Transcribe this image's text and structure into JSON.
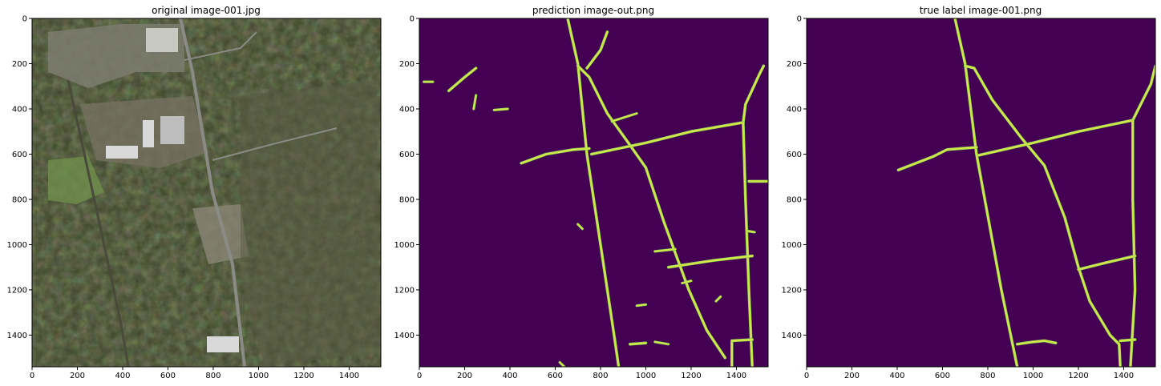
{
  "colors": {
    "background_mask": "#440154",
    "road_mask": "#d6e54a",
    "road_edge": "#7ad151",
    "aerial_forest": "#3b4127",
    "aerial_field": "#6a6a4a",
    "aerial_road": "#8b8b85",
    "aerial_roof": "#d9d9d9",
    "aerial_grass": "#6f8e4c"
  },
  "chart_data": [
    {
      "type": "image",
      "title": "original image-001.jpg",
      "xlim": [
        0,
        1540
      ],
      "ylim": [
        1540,
        0
      ],
      "xticks": [
        0,
        200,
        400,
        600,
        800,
        1000,
        1200,
        1400
      ],
      "yticks": [
        0,
        200,
        400,
        600,
        800,
        1000,
        1200,
        1400
      ],
      "content": "aerial photograph"
    },
    {
      "type": "image",
      "title": "prediction image-out.png",
      "xlim": [
        0,
        1540
      ],
      "ylim": [
        1540,
        0
      ],
      "xticks": [
        0,
        200,
        400,
        600,
        800,
        1000,
        1200,
        1400
      ],
      "yticks": [
        0,
        200,
        400,
        600,
        800,
        1000,
        1200,
        1400
      ],
      "roads": [
        [
          [
            655,
            0
          ],
          [
            700,
            200
          ],
          [
            740,
            600
          ],
          [
            800,
            1000
          ],
          [
            860,
            1400
          ],
          [
            880,
            1540
          ]
        ],
        [
          [
            700,
            210
          ],
          [
            750,
            260
          ],
          [
            830,
            420
          ],
          [
            930,
            560
          ],
          [
            1000,
            660
          ],
          [
            1080,
            900
          ],
          [
            1190,
            1200
          ],
          [
            1270,
            1380
          ],
          [
            1350,
            1500
          ]
        ],
        [
          [
            740,
            220
          ],
          [
            800,
            140
          ],
          [
            830,
            60
          ]
        ],
        [
          [
            760,
            600
          ],
          [
            1000,
            550
          ],
          [
            1200,
            500
          ],
          [
            1430,
            460
          ]
        ],
        [
          [
            1430,
            460
          ],
          [
            1440,
            380
          ],
          [
            1500,
            250
          ],
          [
            1520,
            210
          ]
        ],
        [
          [
            1430,
            460
          ],
          [
            1440,
            800
          ],
          [
            1455,
            1200
          ],
          [
            1470,
            1540
          ]
        ],
        [
          [
            1100,
            1100
          ],
          [
            1300,
            1070
          ],
          [
            1470,
            1050
          ]
        ],
        [
          [
            1380,
            1425
          ],
          [
            1380,
            1540
          ]
        ],
        [
          [
            1380,
            1425
          ],
          [
            1470,
            1420
          ]
        ],
        [
          [
            1455,
            720
          ],
          [
            1540,
            720
          ]
        ],
        [
          [
            450,
            640
          ],
          [
            560,
            600
          ],
          [
            680,
            580
          ],
          [
            750,
            575
          ]
        ],
        [
          [
            130,
            320
          ],
          [
            200,
            260
          ],
          [
            250,
            220
          ]
        ],
        [
          [
            930,
            1440
          ],
          [
            1000,
            1435
          ]
        ]
      ],
      "fragments": [
        [
          [
            1040,
            1030
          ],
          [
            1130,
            1020
          ]
        ],
        [
          [
            1160,
            1170
          ],
          [
            1200,
            1160
          ]
        ],
        [
          [
            1040,
            1430
          ],
          [
            1100,
            1440
          ]
        ],
        [
          [
            330,
            405
          ],
          [
            390,
            400
          ]
        ],
        [
          [
            240,
            400
          ],
          [
            250,
            340
          ]
        ],
        [
          [
            20,
            280
          ],
          [
            60,
            280
          ]
        ],
        [
          [
            850,
            455
          ],
          [
            960,
            420
          ]
        ],
        [
          [
            620,
            1520
          ],
          [
            640,
            1540
          ]
        ],
        [
          [
            700,
            910
          ],
          [
            720,
            930
          ]
        ],
        [
          [
            960,
            1270
          ],
          [
            1000,
            1265
          ]
        ],
        [
          [
            1310,
            1250
          ],
          [
            1330,
            1230
          ]
        ],
        [
          [
            1450,
            940
          ],
          [
            1480,
            945
          ]
        ]
      ]
    },
    {
      "type": "image",
      "title": "true label image-001.png",
      "xlim": [
        0,
        1540
      ],
      "ylim": [
        1540,
        0
      ],
      "xticks": [
        0,
        200,
        400,
        600,
        800,
        1000,
        1200,
        1400
      ],
      "yticks": [
        0,
        200,
        400,
        600,
        800,
        1000,
        1200,
        1400
      ],
      "roads": [
        [
          [
            655,
            0
          ],
          [
            700,
            200
          ],
          [
            750,
            600
          ],
          [
            860,
            1200
          ],
          [
            930,
            1540
          ]
        ],
        [
          [
            700,
            210
          ],
          [
            740,
            220
          ],
          [
            820,
            360
          ],
          [
            950,
            530
          ],
          [
            1050,
            650
          ],
          [
            1140,
            880
          ],
          [
            1200,
            1100
          ],
          [
            1250,
            1250
          ],
          [
            1340,
            1400
          ],
          [
            1380,
            1440
          ],
          [
            1385,
            1540
          ]
        ],
        [
          [
            405,
            670
          ],
          [
            560,
            610
          ],
          [
            620,
            580
          ],
          [
            680,
            575
          ],
          [
            750,
            570
          ]
        ],
        [
          [
            760,
            605
          ],
          [
            1000,
            550
          ],
          [
            1200,
            500
          ],
          [
            1440,
            450
          ]
        ],
        [
          [
            1440,
            450
          ],
          [
            1520,
            290
          ],
          [
            1540,
            210
          ]
        ],
        [
          [
            1440,
            450
          ],
          [
            1440,
            800
          ],
          [
            1450,
            1200
          ],
          [
            1430,
            1540
          ]
        ],
        [
          [
            1200,
            1110
          ],
          [
            1320,
            1080
          ],
          [
            1450,
            1050
          ]
        ],
        [
          [
            1385,
            1425
          ],
          [
            1450,
            1420
          ]
        ],
        [
          [
            930,
            1440
          ],
          [
            1000,
            1430
          ],
          [
            1050,
            1425
          ],
          [
            1100,
            1435
          ]
        ]
      ]
    }
  ]
}
